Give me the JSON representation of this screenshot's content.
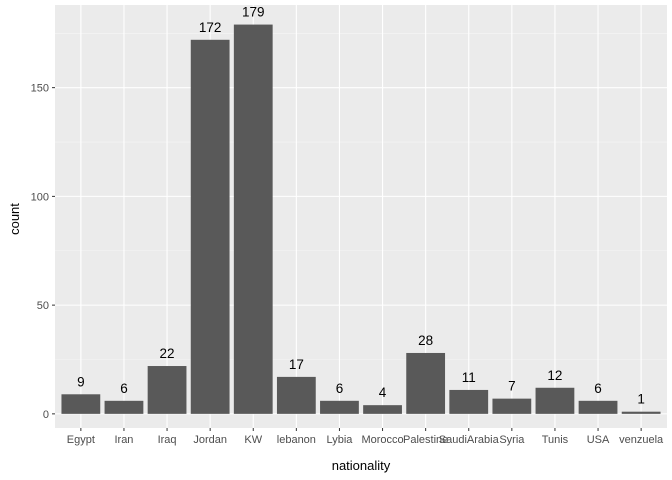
{
  "chart_data": {
    "type": "bar",
    "title": "",
    "xlabel": "nationality",
    "ylabel": "count",
    "categories": [
      "Egypt",
      "Iran",
      "Iraq",
      "Jordan",
      "KW",
      "lebanon",
      "Lybia",
      "Morocco",
      "Palestine",
      "SaudiArabia",
      "Syria",
      "Tunis",
      "USA",
      "venzuela"
    ],
    "values": [
      9,
      6,
      22,
      172,
      179,
      17,
      6,
      4,
      28,
      11,
      7,
      12,
      6,
      1
    ],
    "ylim": [
      -6.5,
      188
    ],
    "yticks": [
      0,
      50,
      100,
      150
    ],
    "grid": true,
    "legend": "none",
    "colors": {
      "panel": "#ebebeb",
      "grid_major": "#ffffff",
      "bar": "#595959"
    }
  }
}
